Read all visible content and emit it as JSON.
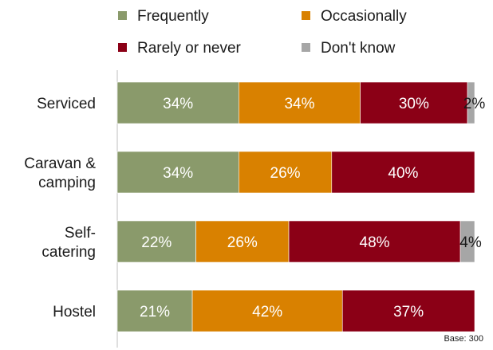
{
  "chart_data": {
    "type": "bar",
    "orientation": "horizontal",
    "stacked": true,
    "categories": [
      [
        "Serviced"
      ],
      [
        "Caravan &",
        "camping"
      ],
      [
        "Self-",
        "catering"
      ],
      [
        "Hostel"
      ]
    ],
    "series": [
      {
        "name": "Frequently",
        "color": "#8a9a6b",
        "values": [
          34,
          34,
          22,
          21
        ],
        "labels": [
          "34%",
          "34%",
          "22%",
          "21%"
        ]
      },
      {
        "name": "Occasionally",
        "color": "#d98100",
        "values": [
          34,
          26,
          26,
          42
        ],
        "labels": [
          "34%",
          "26%",
          "26%",
          "42%"
        ]
      },
      {
        "name": "Rarely or never",
        "color": "#8b0016",
        "values": [
          30,
          40,
          48,
          37
        ],
        "labels": [
          "30%",
          "40%",
          "48%",
          "37%"
        ]
      },
      {
        "name": "Don't know",
        "color": "#a6a6a6",
        "values": [
          2,
          0,
          4,
          0
        ],
        "labels": [
          "2%",
          "",
          "4%",
          ""
        ]
      }
    ],
    "xlim": [
      0,
      100
    ],
    "grid": false,
    "legend": "top",
    "note": "Base: 300"
  }
}
